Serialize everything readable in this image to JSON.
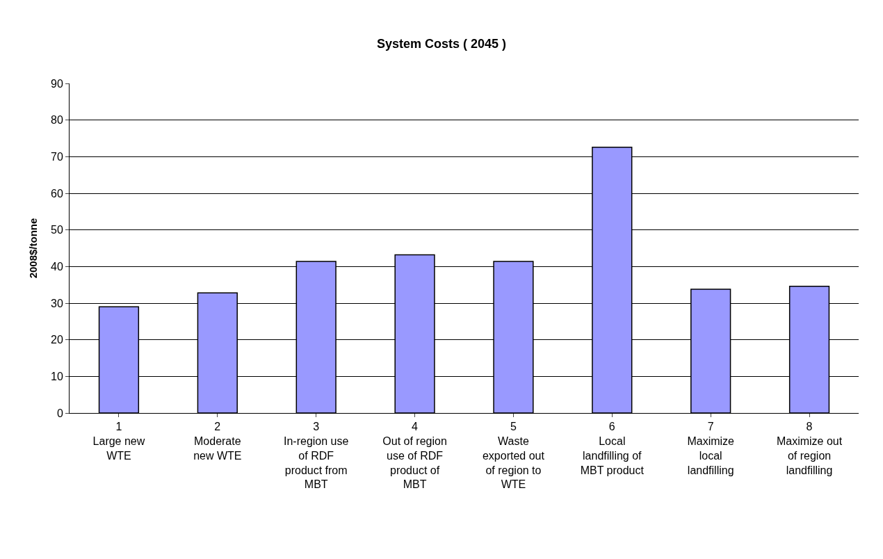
{
  "chart_data": {
    "type": "bar",
    "title": "System Costs ( 2045 )",
    "ylabel": "2008$/tonne",
    "categories": [
      "1\nLarge new\nWTE",
      "2\nModerate\nnew WTE",
      "3\nIn-region use\nof RDF\nproduct from\nMBT",
      "4\nOut of region\nuse of RDF\nproduct of\nMBT",
      "5\nWaste\nexported out\nof region to\nWTE",
      "6\nLocal\nlandfilling of\nMBT product",
      "7\nMaximize\nlocal\nlandfilling",
      "8\nMaximize out\nof region\nlandfilling"
    ],
    "values": [
      29.0,
      32.8,
      41.4,
      43.2,
      41.4,
      72.6,
      33.8,
      34.6
    ],
    "color": "#9999ff",
    "ylim": [
      0,
      90
    ],
    "yticks": [
      0,
      10,
      20,
      30,
      40,
      50,
      60,
      70,
      80,
      90
    ],
    "grid": "y",
    "legend": false
  }
}
